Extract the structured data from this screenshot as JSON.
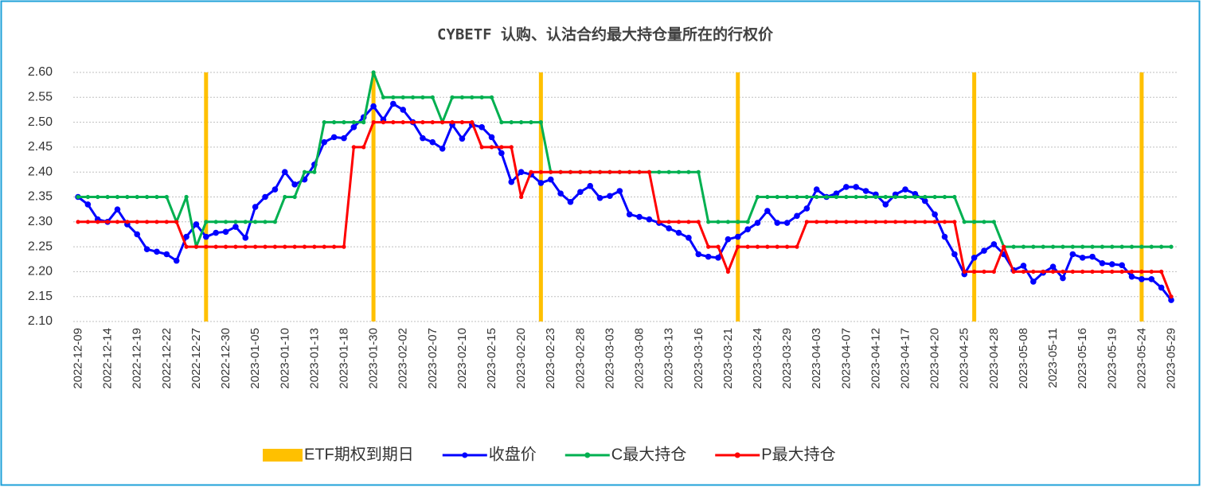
{
  "chart_data": {
    "type": "combo",
    "title": "CYBETF 认购、认沽合约最大持仓量所在的行权价",
    "categories": [
      "2022-12-09",
      null,
      null,
      "2022-12-14",
      null,
      null,
      "2022-12-19",
      null,
      null,
      "2022-12-22",
      null,
      null,
      "2022-12-27",
      null,
      null,
      "2022-12-30",
      null,
      null,
      "2023-01-05",
      null,
      null,
      "2023-01-10",
      null,
      null,
      "2023-01-13",
      null,
      null,
      "2023-01-18",
      null,
      null,
      "2023-01-30",
      null,
      null,
      "2023-02-02",
      null,
      null,
      "2023-02-07",
      null,
      null,
      "2023-02-10",
      null,
      null,
      "2023-02-15",
      null,
      null,
      "2023-02-20",
      null,
      null,
      "2023-02-23",
      null,
      null,
      "2023-02-28",
      null,
      null,
      "2023-03-03",
      null,
      null,
      "2023-03-08",
      null,
      null,
      "2023-03-13",
      null,
      null,
      "2023-03-16",
      null,
      null,
      "2023-03-21",
      null,
      null,
      "2023-03-24",
      null,
      null,
      "2023-03-29",
      null,
      null,
      "2023-04-03",
      null,
      null,
      "2023-04-07",
      null,
      null,
      "2023-04-12",
      null,
      null,
      "2023-04-17",
      null,
      null,
      "2023-04-20",
      null,
      null,
      "2023-04-25",
      null,
      null,
      "2023-04-28",
      null,
      null,
      "2023-05-08",
      null,
      null,
      "2023-05-11",
      null,
      null,
      "2023-05-16",
      null,
      null,
      "2023-05-19",
      null,
      null,
      "2023-05-24",
      null,
      null,
      "2023-05-29"
    ],
    "series": [
      {
        "name": "ETF期权到期日",
        "type": "bar",
        "color": "#ffc000",
        "values": [
          null,
          null,
          null,
          null,
          null,
          null,
          null,
          null,
          null,
          null,
          null,
          null,
          null,
          2.6,
          null,
          null,
          null,
          null,
          null,
          null,
          null,
          null,
          null,
          null,
          null,
          null,
          null,
          null,
          null,
          null,
          2.6,
          null,
          null,
          null,
          null,
          null,
          null,
          null,
          null,
          null,
          null,
          null,
          null,
          null,
          null,
          null,
          null,
          2.6,
          null,
          null,
          null,
          null,
          null,
          null,
          null,
          null,
          null,
          null,
          null,
          null,
          null,
          null,
          null,
          null,
          null,
          null,
          null,
          2.6,
          null,
          null,
          null,
          null,
          null,
          null,
          null,
          null,
          null,
          null,
          null,
          null,
          null,
          null,
          null,
          null,
          null,
          null,
          null,
          null,
          null,
          null,
          null,
          2.6,
          null,
          null,
          null,
          null,
          null,
          null,
          null,
          null,
          null,
          null,
          null,
          null,
          null,
          null,
          null,
          null,
          2.6,
          null,
          null,
          null
        ]
      },
      {
        "name": "收盘价",
        "type": "line",
        "color": "#0000ff",
        "values": [
          2.35,
          2.335,
          2.305,
          2.3,
          2.325,
          2.295,
          2.275,
          2.245,
          2.24,
          2.235,
          2.222,
          2.27,
          2.295,
          2.27,
          2.278,
          2.28,
          2.29,
          2.268,
          2.33,
          2.35,
          2.365,
          2.4,
          2.375,
          2.385,
          2.415,
          2.46,
          2.47,
          2.468,
          2.49,
          2.51,
          2.532,
          2.505,
          2.537,
          2.525,
          2.5,
          2.468,
          2.46,
          2.447,
          2.495,
          2.467,
          2.495,
          2.49,
          2.47,
          2.438,
          2.38,
          2.4,
          2.395,
          2.378,
          2.385,
          2.357,
          2.34,
          2.36,
          2.372,
          2.348,
          2.352,
          2.362,
          2.315,
          2.31,
          2.305,
          2.298,
          2.287,
          2.278,
          2.268,
          2.235,
          2.23,
          2.228,
          2.265,
          2.27,
          2.285,
          2.298,
          2.322,
          2.298,
          2.298,
          2.312,
          2.327,
          2.365,
          2.35,
          2.357,
          2.37,
          2.37,
          2.362,
          2.355,
          2.335,
          2.355,
          2.365,
          2.356,
          2.342,
          2.315,
          2.27,
          2.235,
          2.195,
          2.228,
          2.242,
          2.255,
          2.235,
          2.203,
          2.212,
          2.18,
          2.198,
          2.21,
          2.187,
          2.235,
          2.228,
          2.23,
          2.217,
          2.215,
          2.213,
          2.19,
          2.185,
          2.185,
          2.168,
          2.143
        ]
      },
      {
        "name": "C最大持仓",
        "type": "line",
        "color": "#00b050",
        "values": [
          2.35,
          2.35,
          2.35,
          2.35,
          2.35,
          2.35,
          2.35,
          2.35,
          2.35,
          2.35,
          2.3,
          2.35,
          2.25,
          2.3,
          2.3,
          2.3,
          2.3,
          2.3,
          2.3,
          2.3,
          2.3,
          2.35,
          2.35,
          2.4,
          2.4,
          2.5,
          2.5,
          2.5,
          2.5,
          2.5,
          2.6,
          2.55,
          2.55,
          2.55,
          2.55,
          2.55,
          2.55,
          2.5,
          2.55,
          2.55,
          2.55,
          2.55,
          2.55,
          2.5,
          2.5,
          2.5,
          2.5,
          2.5,
          2.4,
          2.4,
          2.4,
          2.4,
          2.4,
          2.4,
          2.4,
          2.4,
          2.4,
          2.4,
          2.4,
          2.4,
          2.4,
          2.4,
          2.4,
          2.4,
          2.3,
          2.3,
          2.3,
          2.3,
          2.3,
          2.35,
          2.35,
          2.35,
          2.35,
          2.35,
          2.35,
          2.35,
          2.35,
          2.35,
          2.35,
          2.35,
          2.35,
          2.35,
          2.35,
          2.35,
          2.35,
          2.35,
          2.35,
          2.35,
          2.35,
          2.35,
          2.3,
          2.3,
          2.3,
          2.3,
          2.25,
          2.25,
          2.25,
          2.25,
          2.25,
          2.25,
          2.25,
          2.25,
          2.25,
          2.25,
          2.25,
          2.25,
          2.25,
          2.25,
          2.25,
          2.25,
          2.25,
          2.25
        ]
      },
      {
        "name": "P最大持仓",
        "type": "line",
        "color": "#ff0000",
        "values": [
          2.3,
          2.3,
          2.3,
          2.3,
          2.3,
          2.3,
          2.3,
          2.3,
          2.3,
          2.3,
          2.3,
          2.25,
          2.25,
          2.25,
          2.25,
          2.25,
          2.25,
          2.25,
          2.25,
          2.25,
          2.25,
          2.25,
          2.25,
          2.25,
          2.25,
          2.25,
          2.25,
          2.25,
          2.45,
          2.45,
          2.5,
          2.5,
          2.5,
          2.5,
          2.5,
          2.5,
          2.5,
          2.5,
          2.5,
          2.5,
          2.5,
          2.45,
          2.45,
          2.45,
          2.45,
          2.35,
          2.4,
          2.4,
          2.4,
          2.4,
          2.4,
          2.4,
          2.4,
          2.4,
          2.4,
          2.4,
          2.4,
          2.4,
          2.4,
          2.3,
          2.3,
          2.3,
          2.3,
          2.3,
          2.25,
          2.25,
          2.2,
          2.25,
          2.25,
          2.25,
          2.25,
          2.25,
          2.25,
          2.25,
          2.3,
          2.3,
          2.3,
          2.3,
          2.3,
          2.3,
          2.3,
          2.3,
          2.3,
          2.3,
          2.3,
          2.3,
          2.3,
          2.3,
          2.3,
          2.3,
          2.2,
          2.2,
          2.2,
          2.2,
          2.25,
          2.2,
          2.2,
          2.2,
          2.2,
          2.2,
          2.2,
          2.2,
          2.2,
          2.2,
          2.2,
          2.2,
          2.2,
          2.2,
          2.2,
          2.2,
          2.2,
          2.15
        ]
      }
    ],
    "ylim": [
      2.1,
      2.6
    ],
    "yticks": [
      {
        "value": 2.1,
        "label": "2.10"
      },
      2.15,
      {
        "value": 2.2,
        "label": "2.20"
      },
      2.25,
      {
        "value": 2.3,
        "label": "2.30"
      },
      2.35,
      {
        "value": 2.4,
        "label": "2.40"
      },
      2.45,
      {
        "value": 2.5,
        "label": "2.50"
      },
      2.55,
      {
        "value": 2.6,
        "label": "2.60"
      }
    ],
    "grid": true,
    "legend": "bottom"
  }
}
